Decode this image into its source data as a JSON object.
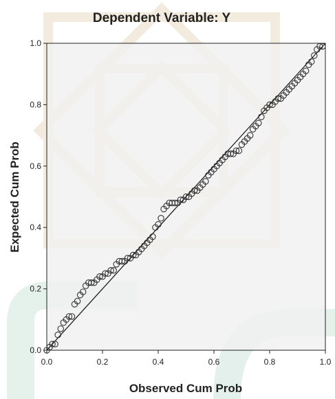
{
  "chart_data": {
    "type": "scatter",
    "title": "Dependent Variable: Y",
    "xlabel": "Observed Cum Prob",
    "ylabel": "Expected Cum Prob",
    "xlim": [
      0,
      1
    ],
    "ylim": [
      0,
      1
    ],
    "xticks": [
      "0.0",
      "0.2",
      "0.4",
      "0.6",
      "0.8",
      "1.0"
    ],
    "yticks": [
      "0.0",
      "0.2",
      "0.4",
      "0.6",
      "0.8",
      "1.0"
    ],
    "grid": false,
    "reference_line": [
      [
        0,
        0
      ],
      [
        1,
        1
      ]
    ],
    "marker": "open-circle",
    "colors": {
      "plot_bg": "#f0f0f0",
      "marker": "#333333",
      "line": "#222222"
    },
    "points": [
      [
        0.0,
        0.0
      ],
      [
        0.01,
        0.01
      ],
      [
        0.02,
        0.02
      ],
      [
        0.03,
        0.02
      ],
      [
        0.04,
        0.05
      ],
      [
        0.05,
        0.07
      ],
      [
        0.06,
        0.09
      ],
      [
        0.07,
        0.1
      ],
      [
        0.08,
        0.11
      ],
      [
        0.09,
        0.11
      ],
      [
        0.1,
        0.15
      ],
      [
        0.11,
        0.16
      ],
      [
        0.12,
        0.18
      ],
      [
        0.13,
        0.19
      ],
      [
        0.14,
        0.21
      ],
      [
        0.15,
        0.22
      ],
      [
        0.16,
        0.22
      ],
      [
        0.17,
        0.22
      ],
      [
        0.18,
        0.23
      ],
      [
        0.19,
        0.24
      ],
      [
        0.2,
        0.24
      ],
      [
        0.21,
        0.25
      ],
      [
        0.22,
        0.25
      ],
      [
        0.23,
        0.26
      ],
      [
        0.24,
        0.26
      ],
      [
        0.25,
        0.28
      ],
      [
        0.26,
        0.29
      ],
      [
        0.27,
        0.29
      ],
      [
        0.28,
        0.29
      ],
      [
        0.29,
        0.3
      ],
      [
        0.3,
        0.3
      ],
      [
        0.31,
        0.31
      ],
      [
        0.32,
        0.31
      ],
      [
        0.33,
        0.32
      ],
      [
        0.34,
        0.33
      ],
      [
        0.35,
        0.34
      ],
      [
        0.36,
        0.35
      ],
      [
        0.37,
        0.36
      ],
      [
        0.38,
        0.37
      ],
      [
        0.39,
        0.4
      ],
      [
        0.4,
        0.41
      ],
      [
        0.41,
        0.43
      ],
      [
        0.42,
        0.46
      ],
      [
        0.43,
        0.47
      ],
      [
        0.44,
        0.48
      ],
      [
        0.45,
        0.48
      ],
      [
        0.46,
        0.48
      ],
      [
        0.47,
        0.48
      ],
      [
        0.48,
        0.49
      ],
      [
        0.49,
        0.49
      ],
      [
        0.5,
        0.5
      ],
      [
        0.51,
        0.5
      ],
      [
        0.52,
        0.51
      ],
      [
        0.53,
        0.52
      ],
      [
        0.54,
        0.52
      ],
      [
        0.55,
        0.53
      ],
      [
        0.56,
        0.54
      ],
      [
        0.57,
        0.55
      ],
      [
        0.58,
        0.57
      ],
      [
        0.59,
        0.58
      ],
      [
        0.6,
        0.59
      ],
      [
        0.61,
        0.6
      ],
      [
        0.62,
        0.61
      ],
      [
        0.63,
        0.62
      ],
      [
        0.64,
        0.63
      ],
      [
        0.65,
        0.64
      ],
      [
        0.66,
        0.64
      ],
      [
        0.67,
        0.64
      ],
      [
        0.68,
        0.65
      ],
      [
        0.69,
        0.65
      ],
      [
        0.7,
        0.67
      ],
      [
        0.71,
        0.68
      ],
      [
        0.72,
        0.69
      ],
      [
        0.73,
        0.7
      ],
      [
        0.74,
        0.72
      ],
      [
        0.75,
        0.73
      ],
      [
        0.76,
        0.74
      ],
      [
        0.77,
        0.76
      ],
      [
        0.78,
        0.78
      ],
      [
        0.79,
        0.79
      ],
      [
        0.8,
        0.8
      ],
      [
        0.81,
        0.8
      ],
      [
        0.82,
        0.81
      ],
      [
        0.83,
        0.82
      ],
      [
        0.84,
        0.82
      ],
      [
        0.85,
        0.83
      ],
      [
        0.86,
        0.84
      ],
      [
        0.87,
        0.85
      ],
      [
        0.88,
        0.86
      ],
      [
        0.89,
        0.87
      ],
      [
        0.9,
        0.88
      ],
      [
        0.91,
        0.89
      ],
      [
        0.92,
        0.9
      ],
      [
        0.93,
        0.91
      ],
      [
        0.94,
        0.93
      ],
      [
        0.95,
        0.94
      ],
      [
        0.96,
        0.96
      ],
      [
        0.97,
        0.98
      ],
      [
        0.98,
        0.99
      ],
      [
        0.99,
        0.99
      ]
    ]
  }
}
